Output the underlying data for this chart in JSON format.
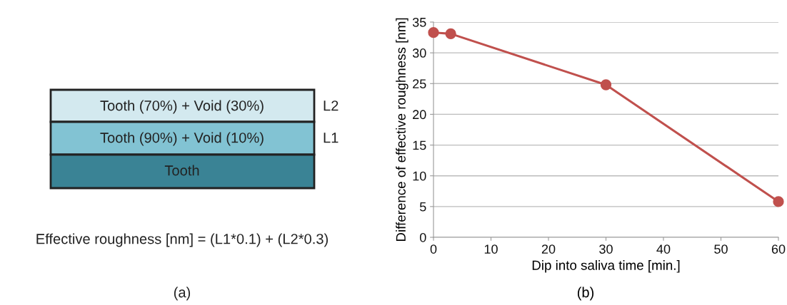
{
  "chart_data": [
    {
      "type": "other",
      "colors": [
        "#d3e9ef",
        "#82c3d3",
        "#3a8395"
      ],
      "annotations": [
        "Tooth (70%) + Void (30%)",
        "Tooth (90%) + Void (10%)",
        "Tooth",
        "L2",
        "L1",
        "Effective roughness [nm] = (L1*0.1) + (L2*0.3)",
        "(a)"
      ]
    },
    {
      "type": "line",
      "xlabel": "Dip into saliva time [min.]",
      "ylabel": "Difference of effective roughness [nm]",
      "x": [
        0,
        3,
        30,
        60
      ],
      "series": [
        {
          "color": "#c0504d",
          "values": [
            33.3,
            33.1,
            24.8,
            5.8
          ]
        }
      ],
      "xlim": [
        0,
        60
      ],
      "xticks": [
        0,
        10,
        20,
        30,
        40,
        50,
        60
      ],
      "ylim": [
        0,
        35
      ],
      "yticks": [
        0,
        5,
        10,
        15,
        20,
        25,
        30,
        35
      ],
      "grid": "y",
      "marker": "circle",
      "line_style": "solid",
      "annotations": [
        "(b)"
      ]
    }
  ]
}
